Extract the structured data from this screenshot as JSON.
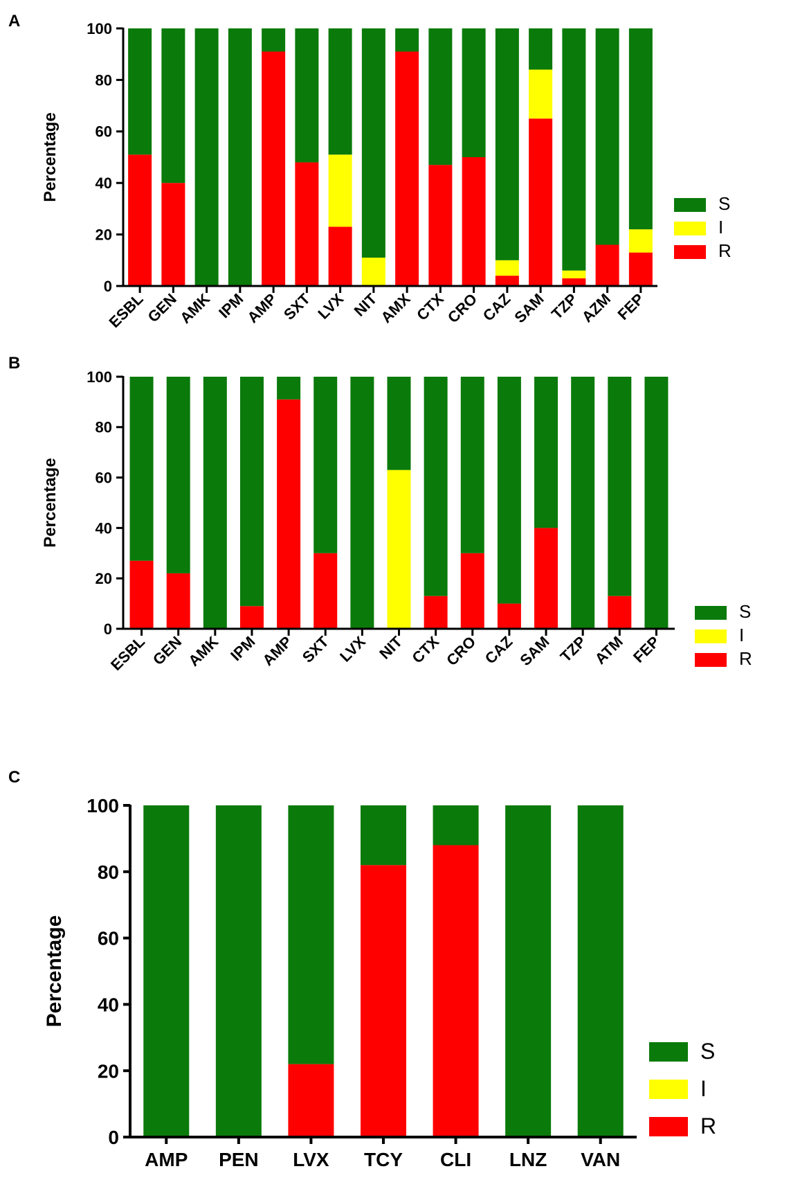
{
  "colors": {
    "S": "#0a7a0a",
    "I": "#ffff00",
    "R": "#ff0000",
    "axis": "#000000"
  },
  "chart_data": [
    {
      "panel": "A",
      "type": "bar",
      "stacked": true,
      "ylabel": "Percentage",
      "ylim": [
        0,
        100
      ],
      "yticks": [
        "0",
        "20",
        "40",
        "60",
        "80",
        "100"
      ],
      "legend": [
        "S",
        "I",
        "R"
      ],
      "legend_position": "right",
      "categories": [
        "ESBL",
        "GEN",
        "AMK",
        "IPM",
        "AMP",
        "SXT",
        "LVX",
        "NIT",
        "AMX",
        "CTX",
        "CRO",
        "CAZ",
        "SAM",
        "TZP",
        "AZM",
        "FEP"
      ],
      "series": [
        {
          "name": "R",
          "values": [
            51,
            40,
            0,
            0,
            91,
            48,
            23,
            0,
            91,
            47,
            50,
            4,
            65,
            3,
            16,
            13
          ]
        },
        {
          "name": "I",
          "values": [
            0,
            0,
            0,
            0,
            0,
            0,
            28,
            11,
            0,
            0,
            0,
            6,
            19,
            3,
            0,
            9
          ]
        },
        {
          "name": "S",
          "values": [
            49,
            60,
            100,
            100,
            9,
            52,
            49,
            89,
            9,
            53,
            50,
            90,
            16,
            94,
            84,
            78
          ]
        }
      ]
    },
    {
      "panel": "B",
      "type": "bar",
      "stacked": true,
      "ylabel": "Percentage",
      "ylim": [
        0,
        100
      ],
      "yticks": [
        "0",
        "20",
        "40",
        "60",
        "80",
        "100"
      ],
      "legend": [
        "S",
        "I",
        "R"
      ],
      "legend_position": "right",
      "categories": [
        "ESBL",
        "GEN",
        "AMK",
        "IPM",
        "AMP",
        "SXT",
        "LVX",
        "NIT",
        "CTX",
        "CRO",
        "CAZ",
        "SAM",
        "TZP",
        "ATM",
        "FEP"
      ],
      "series": [
        {
          "name": "R",
          "values": [
            27,
            22,
            0,
            9,
            91,
            30,
            0,
            0,
            13,
            30,
            10,
            40,
            0,
            13,
            0
          ]
        },
        {
          "name": "I",
          "values": [
            0,
            0,
            0,
            0,
            0,
            0,
            0,
            63,
            0,
            0,
            0,
            0,
            0,
            0,
            0
          ]
        },
        {
          "name": "S",
          "values": [
            73,
            78,
            100,
            91,
            9,
            70,
            100,
            37,
            87,
            70,
            90,
            60,
            100,
            87,
            100
          ]
        }
      ]
    },
    {
      "panel": "C",
      "type": "bar",
      "stacked": true,
      "ylabel": "Percentage",
      "ylim": [
        0,
        100
      ],
      "yticks": [
        "0",
        "20",
        "40",
        "60",
        "80",
        "100"
      ],
      "legend": [
        "S",
        "I",
        "R"
      ],
      "legend_position": "right",
      "categories": [
        "AMP",
        "PEN",
        "LVX",
        "TCY",
        "CLI",
        "LNZ",
        "VAN"
      ],
      "series": [
        {
          "name": "R",
          "values": [
            0,
            0,
            22,
            82,
            88,
            0,
            0
          ]
        },
        {
          "name": "I",
          "values": [
            0,
            0,
            0,
            0,
            0,
            0,
            0
          ]
        },
        {
          "name": "S",
          "values": [
            100,
            100,
            78,
            18,
            12,
            100,
            100
          ]
        }
      ]
    }
  ]
}
